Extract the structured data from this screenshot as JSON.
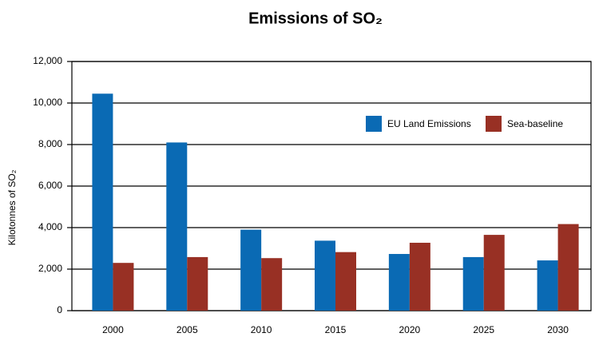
{
  "chart_data": {
    "type": "bar",
    "title": "Emissions of SO₂",
    "y_label": "Kilotonnes of SO₂",
    "categories": [
      "2000",
      "2005",
      "2010",
      "2015",
      "2020",
      "2025",
      "2030"
    ],
    "series": [
      {
        "name": "EU Land Emissions",
        "color": "#0a6ab4",
        "values": [
          10450,
          8100,
          3900,
          3370,
          2730,
          2580,
          2420
        ]
      },
      {
        "name": "Sea-baseline",
        "color": "#983024",
        "values": [
          2300,
          2580,
          2530,
          2820,
          3270,
          3650,
          4170
        ]
      }
    ],
    "ylim": [
      0,
      12000
    ],
    "yticks": [
      0,
      {
        "value": 2000,
        "label": "2,000"
      },
      {
        "value": 4000,
        "label": "4,000"
      },
      {
        "value": 6000,
        "label": "6,000"
      },
      {
        "value": 8000,
        "label": "8,000"
      },
      {
        "value": 10000,
        "label": "10,000"
      },
      {
        "value": 12000,
        "label": "12,000"
      }
    ],
    "grid": true
  }
}
